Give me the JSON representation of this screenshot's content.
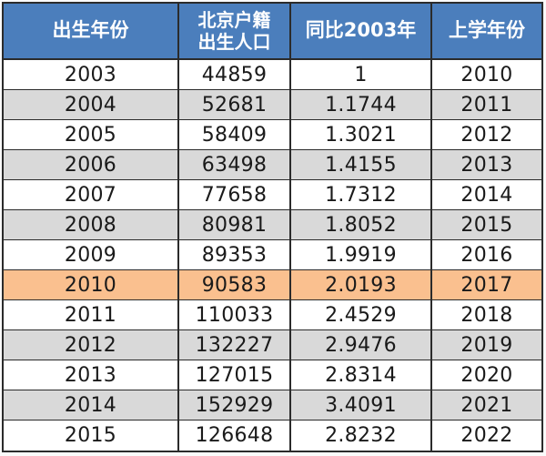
{
  "colors": {
    "header_bg": "#4B7EBC",
    "header_text": "#FFFFFF",
    "row_bg": "#FFFFFF",
    "stripe_bg": "#D9D9D9",
    "highlight_bg": "#FAC08F",
    "border": "#2B2B2B",
    "text": "#1A1A1A"
  },
  "table": {
    "headers": [
      "出生年份",
      "北京户籍\n出生人口",
      "同比2003年",
      "上学年份"
    ],
    "rows": [
      [
        "2003",
        "44859",
        "1",
        "2010"
      ],
      [
        "2004",
        "52681",
        "1.1744",
        "2011"
      ],
      [
        "2005",
        "58409",
        "1.3021",
        "2012"
      ],
      [
        "2006",
        "63498",
        "1.4155",
        "2013"
      ],
      [
        "2007",
        "77658",
        "1.7312",
        "2014"
      ],
      [
        "2008",
        "80981",
        "1.8052",
        "2015"
      ],
      [
        "2009",
        "89353",
        "1.9919",
        "2016"
      ],
      [
        "2010",
        "90583",
        "2.0193",
        "2017"
      ],
      [
        "2011",
        "110033",
        "2.4529",
        "2018"
      ],
      [
        "2012",
        "132227",
        "2.9476",
        "2019"
      ],
      [
        "2013",
        "127015",
        "2.8314",
        "2020"
      ],
      [
        "2014",
        "152929",
        "3.4091",
        "2021"
      ],
      [
        "2015",
        "126648",
        "2.8232",
        "2022"
      ]
    ],
    "highlighted_row_index": 7
  },
  "chart_data": {
    "type": "table",
    "columns": [
      "出生年份",
      "北京户籍出生人口",
      "同比2003年",
      "上学年份"
    ],
    "rows": [
      {
        "出生年份": "2003",
        "北京户籍出生人口": 44859,
        "同比2003年": 1,
        "上学年份": "2010"
      },
      {
        "出生年份": "2004",
        "北京户籍出生人口": 52681,
        "同比2003年": 1.1744,
        "上学年份": "2011"
      },
      {
        "出生年份": "2005",
        "北京户籍出生人口": 58409,
        "同比2003年": 1.3021,
        "上学年份": "2012"
      },
      {
        "出生年份": "2006",
        "北京户籍出生人口": 63498,
        "同比2003年": 1.4155,
        "上学年份": "2013"
      },
      {
        "出生年份": "2007",
        "北京户籍出生人口": 77658,
        "同比2003年": 1.7312,
        "上学年份": "2014"
      },
      {
        "出生年份": "2008",
        "北京户籍出生人口": 80981,
        "同比2003年": 1.8052,
        "上学年份": "2015"
      },
      {
        "出生年份": "2009",
        "北京户籍出生人口": 89353,
        "同比2003年": 1.9919,
        "上学年份": "2016"
      },
      {
        "出生年份": "2010",
        "北京户籍出生人口": 90583,
        "同比2003年": 2.0193,
        "上学年份": "2017"
      },
      {
        "出生年份": "2011",
        "北京户籍出生人口": 110033,
        "同比2003年": 2.4529,
        "上学年份": "2018"
      },
      {
        "出生年份": "2012",
        "北京户籍出生人口": 132227,
        "同比2003年": 2.9476,
        "上学年份": "2019"
      },
      {
        "出生年份": "2013",
        "北京户籍出生人口": 127015,
        "同比2003年": 2.8314,
        "上学年份": "2020"
      },
      {
        "出生年份": "2014",
        "北京户籍出生人口": 152929,
        "同比2003年": 3.4091,
        "上学年份": "2021"
      },
      {
        "出生年份": "2015",
        "北京户籍出生人口": 126648,
        "同比2003年": 2.8232,
        "上学年份": "2022"
      }
    ],
    "highlighted_row": {
      "出生年份": "2010",
      "北京户籍出生人口": 90583,
      "同比2003年": 2.0193,
      "上学年份": "2017"
    },
    "notes": "Orange highlight marks the 2010 birth-year row (school year 2017)."
  }
}
